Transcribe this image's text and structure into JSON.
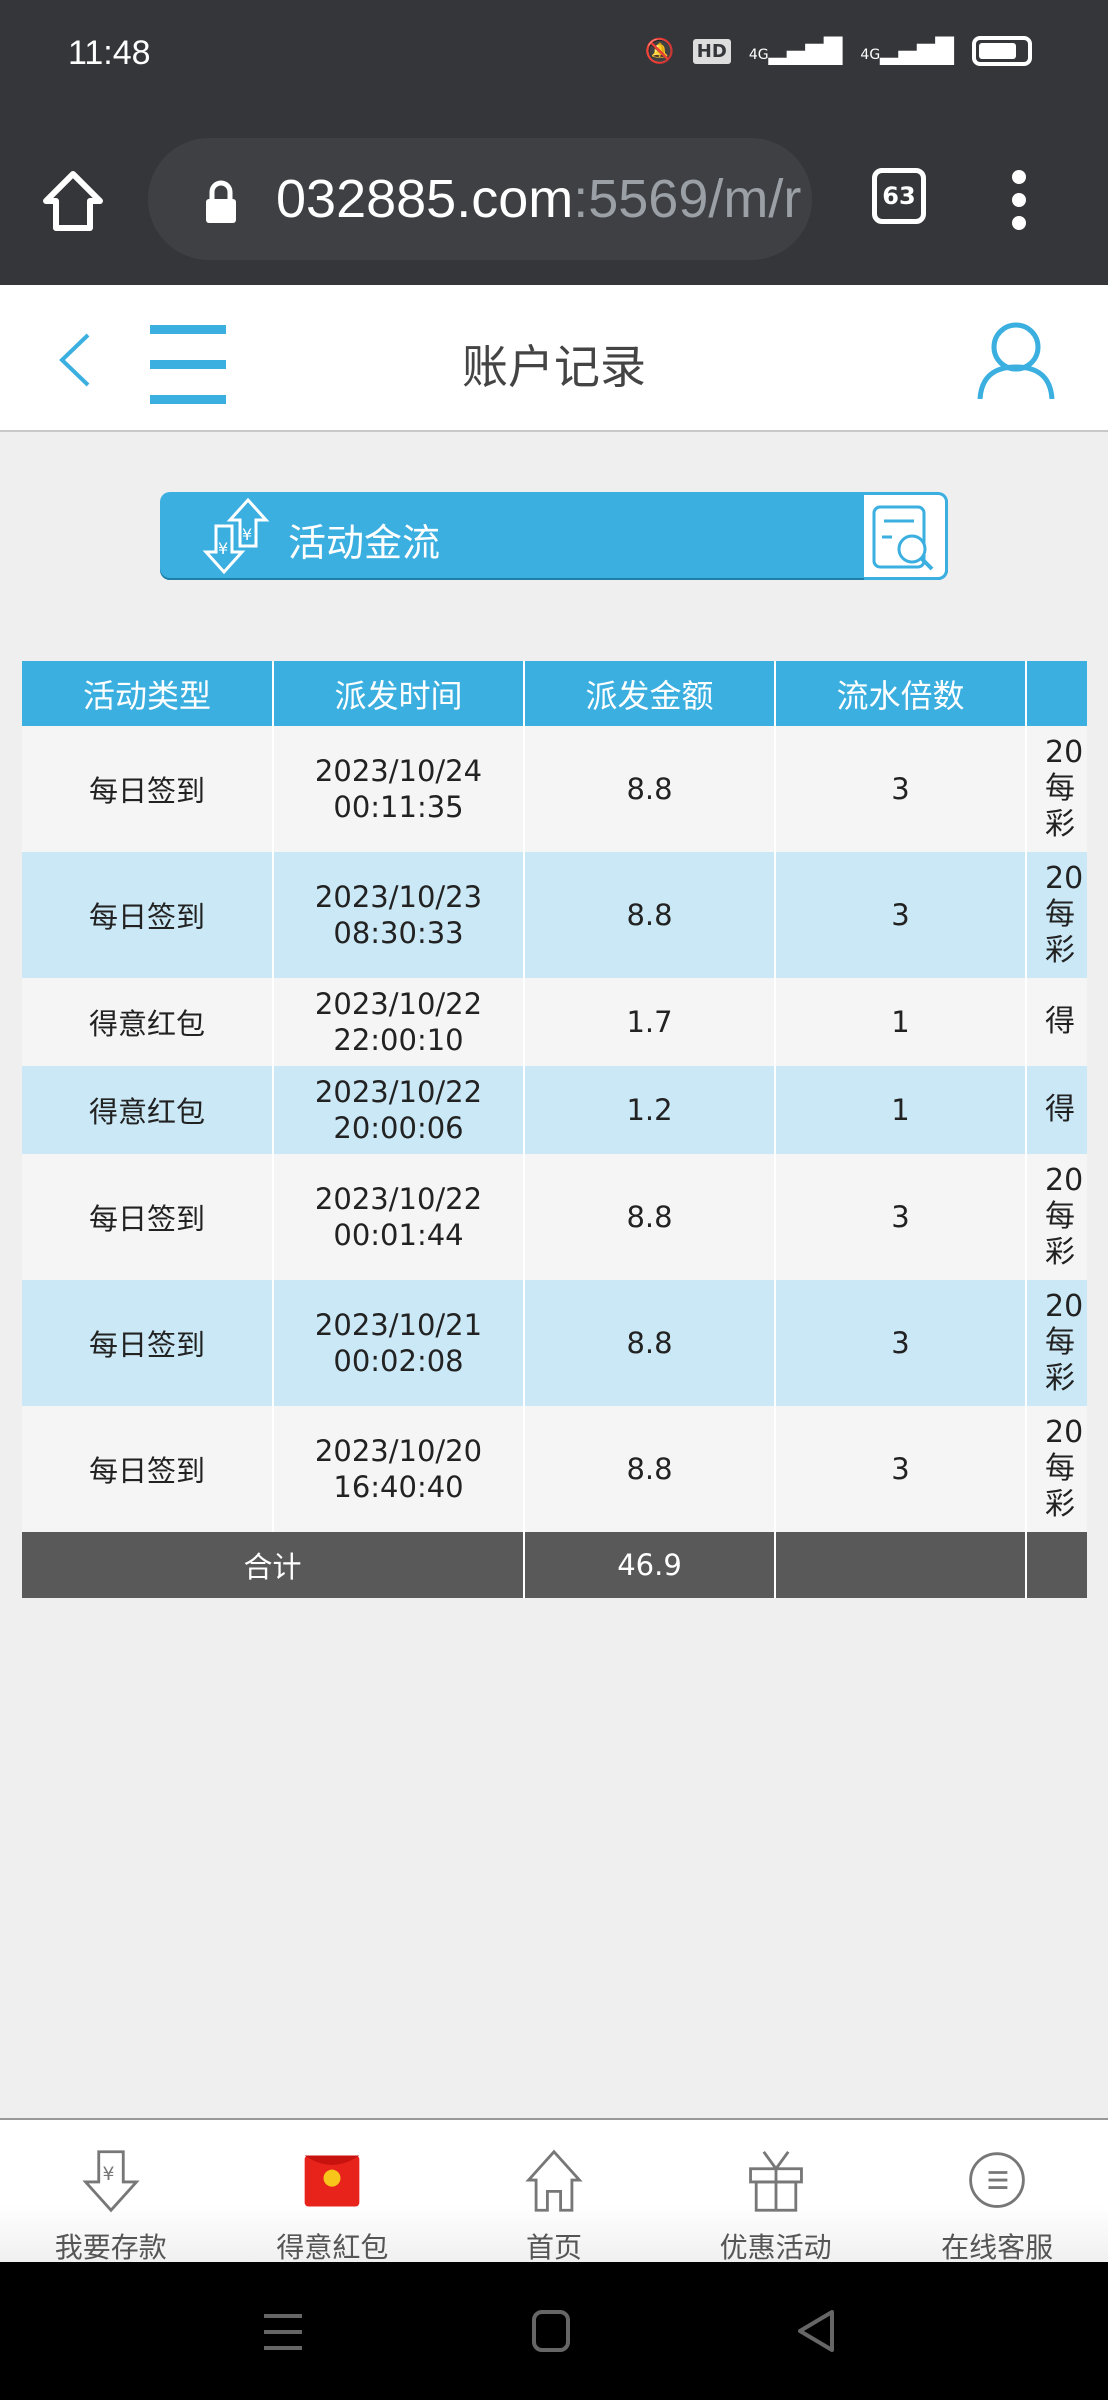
{
  "status_bar": {
    "time": "11:48",
    "hd": "HD",
    "net1": "4G",
    "net2": "4G"
  },
  "browser": {
    "url_host": "032885.com",
    "url_rest": ":5569/m/r",
    "tab_count": "63"
  },
  "header": {
    "title": "账户记录"
  },
  "banner": {
    "label": "活动金流"
  },
  "table": {
    "columns": [
      "活动类型",
      "派发时间",
      "派发金额",
      "流水倍数",
      ""
    ],
    "rows": [
      {
        "type": "每日签到",
        "date": "2023/10/24",
        "time": "00:11:35",
        "amount": "8.8",
        "multiplier": "3",
        "extra": [
          "20",
          "每",
          "彩"
        ]
      },
      {
        "type": "每日签到",
        "date": "2023/10/23",
        "time": "08:30:33",
        "amount": "8.8",
        "multiplier": "3",
        "extra": [
          "20",
          "每",
          "彩"
        ]
      },
      {
        "type": "得意红包",
        "date": "2023/10/22",
        "time": "22:00:10",
        "amount": "1.7",
        "multiplier": "1",
        "extra": [
          "得"
        ]
      },
      {
        "type": "得意红包",
        "date": "2023/10/22",
        "time": "20:00:06",
        "amount": "1.2",
        "multiplier": "1",
        "extra": [
          "得"
        ]
      },
      {
        "type": "每日签到",
        "date": "2023/10/22",
        "time": "00:01:44",
        "amount": "8.8",
        "multiplier": "3",
        "extra": [
          "20",
          "每",
          "彩"
        ]
      },
      {
        "type": "每日签到",
        "date": "2023/10/21",
        "time": "00:02:08",
        "amount": "8.8",
        "multiplier": "3",
        "extra": [
          "20",
          "每",
          "彩"
        ]
      },
      {
        "type": "每日签到",
        "date": "2023/10/20",
        "time": "16:40:40",
        "amount": "8.8",
        "multiplier": "3",
        "extra": [
          "20",
          "每",
          "彩"
        ]
      }
    ],
    "total_label": "合计",
    "total_amount": "46.9"
  },
  "bottom_nav": [
    {
      "label": "我要存款",
      "icon": "deposit-icon"
    },
    {
      "label": "得意紅包",
      "icon": "red-envelope-icon"
    },
    {
      "label": "首页",
      "icon": "home-icon"
    },
    {
      "label": "优惠活动",
      "icon": "gift-icon"
    },
    {
      "label": "在线客服",
      "icon": "support-icon"
    }
  ],
  "colors": {
    "accent": "#3aafe0",
    "row_alt": "#cbe8f6",
    "total_bg": "#595959"
  }
}
